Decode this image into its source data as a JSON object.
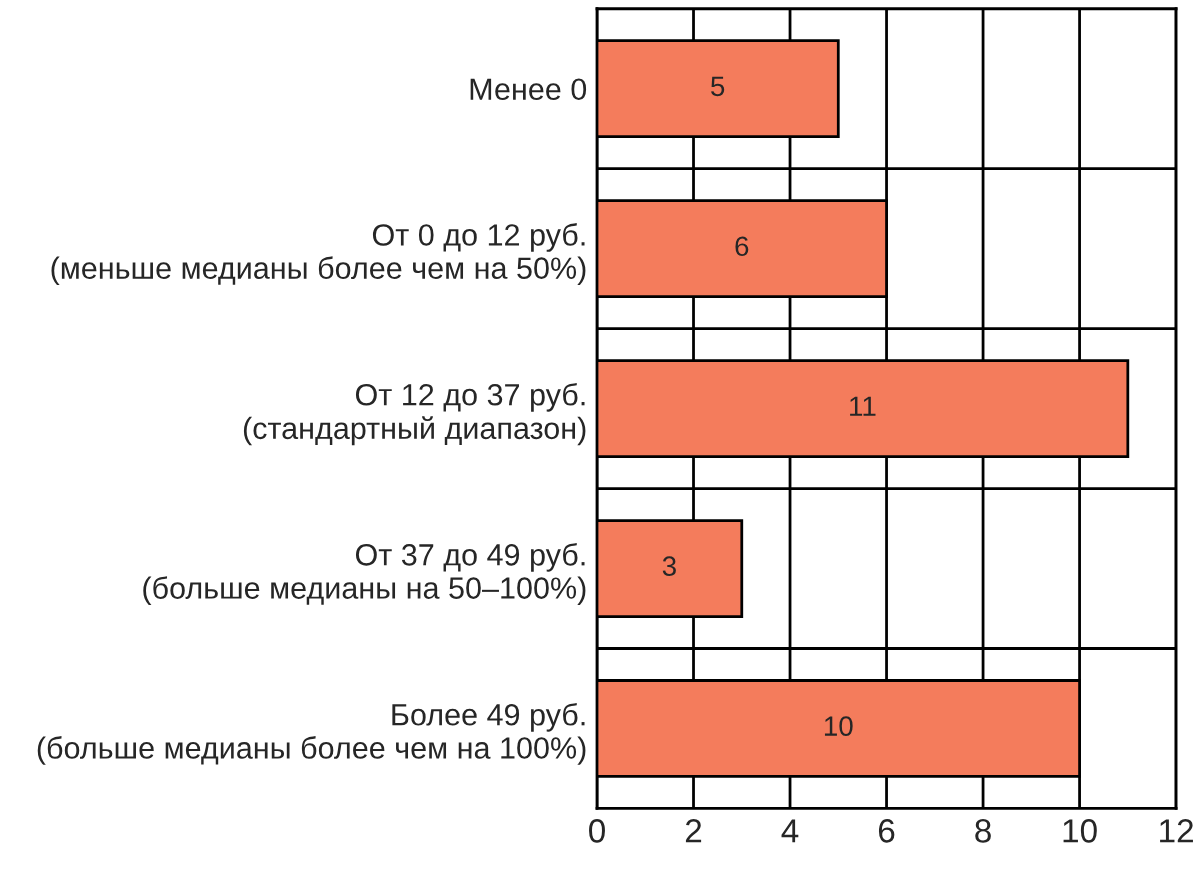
{
  "chart_data": {
    "type": "bar",
    "orientation": "horizontal",
    "categories": [
      "Менее 0",
      "От 0 до 12 руб.\n(меньше медианы более чем на 50%)",
      "От 12 до 37 руб.\n(стандартный диапазон)",
      "От 37 до 49 руб.\n(больше медианы на 50–100%)",
      "Более 49 руб.\n(больше медианы более чем на 100%)"
    ],
    "values": [
      5,
      6,
      11,
      3,
      10
    ],
    "color": "#f47c5c",
    "xlim": [
      0,
      12
    ],
    "xticks": [
      0,
      2,
      4,
      6,
      8,
      10,
      12
    ],
    "grid": true,
    "data_labels": true
  }
}
